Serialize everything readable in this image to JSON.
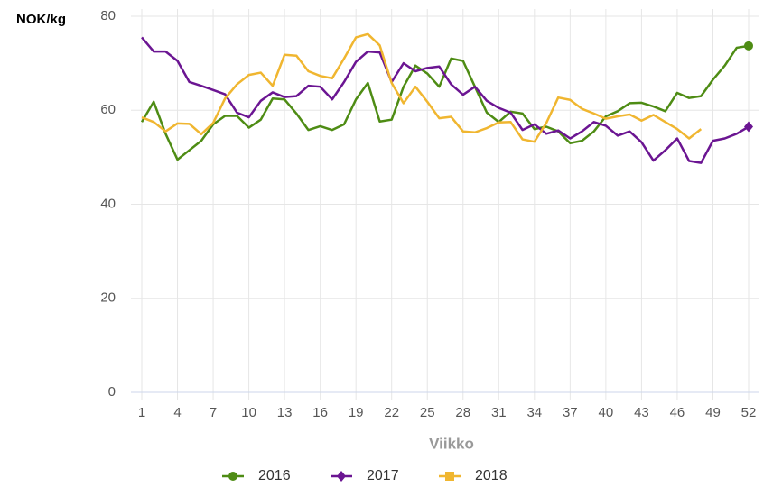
{
  "chart_data": {
    "type": "line",
    "y_label": "NOK/kg",
    "x_label": "Viikko",
    "x": [
      1,
      2,
      3,
      4,
      5,
      6,
      7,
      8,
      9,
      10,
      11,
      12,
      13,
      14,
      15,
      16,
      17,
      18,
      19,
      20,
      21,
      22,
      23,
      24,
      25,
      26,
      27,
      28,
      29,
      30,
      31,
      32,
      33,
      34,
      35,
      36,
      37,
      38,
      39,
      40,
      41,
      42,
      43,
      44,
      45,
      46,
      47,
      48,
      49,
      50,
      51,
      52
    ],
    "series": [
      {
        "name": "2016",
        "color": "#4e8c14",
        "marker": "circle",
        "values": [
          57.5,
          61.8,
          55,
          49.5,
          51.5,
          53.5,
          57,
          58.8,
          58.8,
          56.3,
          58,
          62.5,
          62.3,
          59.3,
          55.8,
          56.6,
          55.8,
          57,
          62.3,
          65.8,
          57.6,
          58,
          65,
          69.5,
          67.8,
          65,
          71,
          70.5,
          65,
          59.5,
          57.5,
          59.7,
          59.3,
          56,
          56.5,
          55.5,
          53,
          53.5,
          55.5,
          58.7,
          59.8,
          61.5,
          61.6,
          60.8,
          59.8,
          63.7,
          62.6,
          63,
          66.5,
          69.5,
          73.3,
          73.7
        ]
      },
      {
        "name": "2017",
        "color": "#6b1592",
        "marker": "diamond",
        "values": [
          75.5,
          72.5,
          72.5,
          70.5,
          66,
          65.2,
          64.3,
          63.4,
          59.5,
          58.5,
          62,
          63.8,
          62.8,
          63,
          65.2,
          65,
          62.3,
          66,
          70.3,
          72.5,
          72.3,
          66,
          70,
          68.3,
          69,
          69.3,
          65.5,
          63.3,
          65,
          62,
          60.5,
          59.5,
          55.8,
          57,
          55,
          55.7,
          54,
          55.5,
          57.5,
          56.7,
          54.6,
          55.5,
          53.2,
          49.3,
          51.5,
          54,
          49.2,
          48.8,
          53.5,
          54,
          55,
          56.5
        ]
      },
      {
        "name": "2018",
        "color": "#f0b630",
        "marker": "square",
        "values": [
          58.5,
          57.5,
          55.5,
          57.2,
          57.1,
          54.9,
          57.3,
          62.5,
          65.5,
          67.5,
          68,
          65.2,
          71.8,
          71.6,
          68.3,
          67.3,
          66.8,
          71,
          75.5,
          76.2,
          73.8,
          65.8,
          61.5,
          65,
          61.8,
          58.3,
          58.6,
          55.5,
          55.3,
          56.2,
          57.4,
          57.5,
          53.8,
          53.3,
          57.3,
          62.7,
          62.2,
          60.3,
          59.3,
          58.2,
          58.7,
          59.1,
          57.8,
          59,
          57.5,
          56,
          54,
          56,
          null,
          null,
          null,
          null
        ]
      }
    ],
    "xlim": [
      1,
      52
    ],
    "xticks": [
      1,
      4,
      7,
      10,
      13,
      16,
      19,
      22,
      25,
      28,
      31,
      34,
      37,
      40,
      43,
      46,
      49,
      52
    ],
    "ylim": [
      0,
      80
    ],
    "yticks": [
      0,
      20,
      40,
      60,
      80
    ],
    "grid": true,
    "legend": "bottom"
  }
}
